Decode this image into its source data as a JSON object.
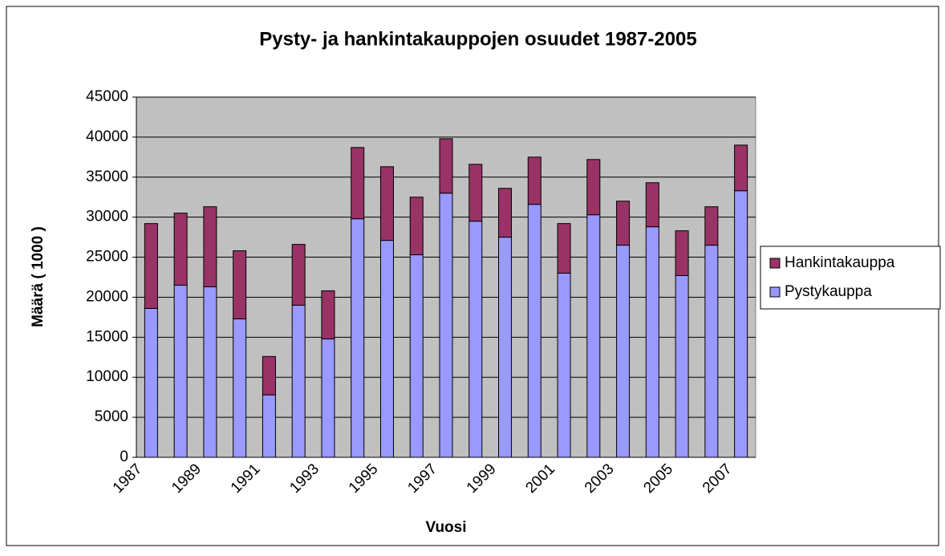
{
  "chart_data": {
    "type": "bar",
    "stacked": true,
    "title": "Pysty- ja hankintakauppojen osuudet 1987-2005",
    "x_label": "Vuosi",
    "y_label": "Määrä ( 1000 )",
    "categories": [
      "1987",
      null,
      "1989",
      null,
      "1991",
      null,
      "1993",
      null,
      "1995",
      null,
      "1997",
      null,
      "1999",
      null,
      "2001",
      null,
      "2003",
      null,
      "2005",
      null,
      "2007"
    ],
    "series": [
      {
        "name": "Pystykauppa",
        "color": "#9999ff",
        "values": [
          18600,
          21500,
          21300,
          17300,
          7800,
          19000,
          14800,
          29800,
          27100,
          25300,
          33000,
          29500,
          27500,
          31600,
          23000,
          30300,
          26500,
          28800,
          22700,
          26500,
          33300
        ]
      },
      {
        "name": "Hankintakauppa",
        "color": "#993366",
        "values": [
          10600,
          9000,
          10000,
          8500,
          4800,
          7600,
          6000,
          8900,
          9200,
          7200,
          6800,
          7100,
          6100,
          5900,
          6200,
          6900,
          5500,
          5500,
          5600,
          4800,
          5700
        ]
      }
    ],
    "ylim": [
      0,
      45000
    ],
    "yticks": [
      0,
      5000,
      10000,
      15000,
      20000,
      25000,
      30000,
      35000,
      40000,
      45000
    ],
    "grid": true,
    "legend": "right"
  }
}
